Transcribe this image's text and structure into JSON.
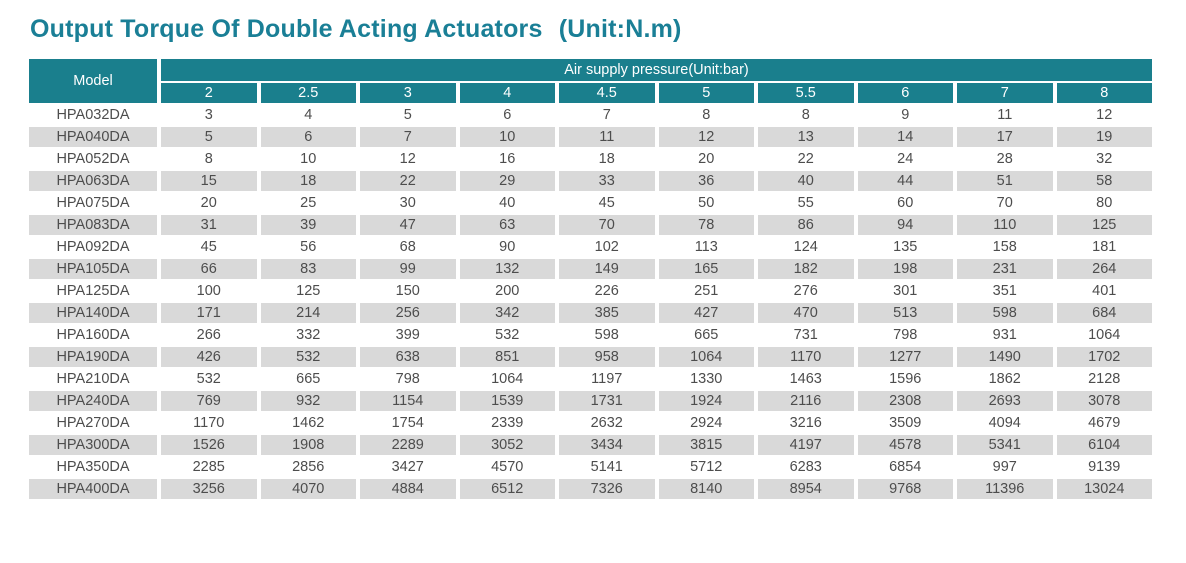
{
  "header": {
    "title": "Output Torque Of Double Acting Actuators",
    "unit": "(Unit:N.m)"
  },
  "table": {
    "model_header": "Model",
    "pressure_header": "Air supply pressure(Unit:bar)",
    "pressure_columns": [
      "2",
      "2.5",
      "3",
      "4",
      "4.5",
      "5",
      "5.5",
      "6",
      "7",
      "8"
    ],
    "rows": [
      {
        "model": "HPA032DA",
        "values": [
          "3",
          "4",
          "5",
          "6",
          "7",
          "8",
          "8",
          "9",
          "11",
          "12"
        ]
      },
      {
        "model": "HPA040DA",
        "values": [
          "5",
          "6",
          "7",
          "10",
          "11",
          "12",
          "13",
          "14",
          "17",
          "19"
        ]
      },
      {
        "model": "HPA052DA",
        "values": [
          "8",
          "10",
          "12",
          "16",
          "18",
          "20",
          "22",
          "24",
          "28",
          "32"
        ]
      },
      {
        "model": "HPA063DA",
        "values": [
          "15",
          "18",
          "22",
          "29",
          "33",
          "36",
          "40",
          "44",
          "51",
          "58"
        ]
      },
      {
        "model": "HPA075DA",
        "values": [
          "20",
          "25",
          "30",
          "40",
          "45",
          "50",
          "55",
          "60",
          "70",
          "80"
        ]
      },
      {
        "model": "HPA083DA",
        "values": [
          "31",
          "39",
          "47",
          "63",
          "70",
          "78",
          "86",
          "94",
          "110",
          "125"
        ]
      },
      {
        "model": "HPA092DA",
        "values": [
          "45",
          "56",
          "68",
          "90",
          "102",
          "113",
          "124",
          "135",
          "158",
          "181"
        ]
      },
      {
        "model": "HPA105DA",
        "values": [
          "66",
          "83",
          "99",
          "132",
          "149",
          "165",
          "182",
          "198",
          "231",
          "264"
        ]
      },
      {
        "model": "HPA125DA",
        "values": [
          "100",
          "125",
          "150",
          "200",
          "226",
          "251",
          "276",
          "301",
          "351",
          "401"
        ]
      },
      {
        "model": "HPA140DA",
        "values": [
          "171",
          "214",
          "256",
          "342",
          "385",
          "427",
          "470",
          "513",
          "598",
          "684"
        ]
      },
      {
        "model": "HPA160DA",
        "values": [
          "266",
          "332",
          "399",
          "532",
          "598",
          "665",
          "731",
          "798",
          "931",
          "1064"
        ]
      },
      {
        "model": "HPA190DA",
        "values": [
          "426",
          "532",
          "638",
          "851",
          "958",
          "1064",
          "1170",
          "1277",
          "1490",
          "1702"
        ]
      },
      {
        "model": "HPA210DA",
        "values": [
          "532",
          "665",
          "798",
          "1064",
          "1197",
          "1330",
          "1463",
          "1596",
          "1862",
          "2128"
        ]
      },
      {
        "model": "HPA240DA",
        "values": [
          "769",
          "932",
          "1154",
          "1539",
          "1731",
          "1924",
          "2116",
          "2308",
          "2693",
          "3078"
        ]
      },
      {
        "model": "HPA270DA",
        "values": [
          "1170",
          "1462",
          "1754",
          "2339",
          "2632",
          "2924",
          "3216",
          "3509",
          "4094",
          "4679"
        ]
      },
      {
        "model": "HPA300DA",
        "values": [
          "1526",
          "1908",
          "2289",
          "3052",
          "3434",
          "3815",
          "4197",
          "4578",
          "5341",
          "6104"
        ]
      },
      {
        "model": "HPA350DA",
        "values": [
          "2285",
          "2856",
          "3427",
          "4570",
          "5141",
          "5712",
          "6283",
          "6854",
          "997",
          "9139"
        ]
      },
      {
        "model": "HPA400DA",
        "values": [
          "3256",
          "4070",
          "4884",
          "6512",
          "7326",
          "8140",
          "8954",
          "9768",
          "11396",
          "13024"
        ]
      }
    ]
  },
  "colors": {
    "header_teal": "#1A7F8D",
    "title_teal": "#1A7F96",
    "row_stripe": "#D9D9D9",
    "cell_text": "#4D4D4D"
  }
}
